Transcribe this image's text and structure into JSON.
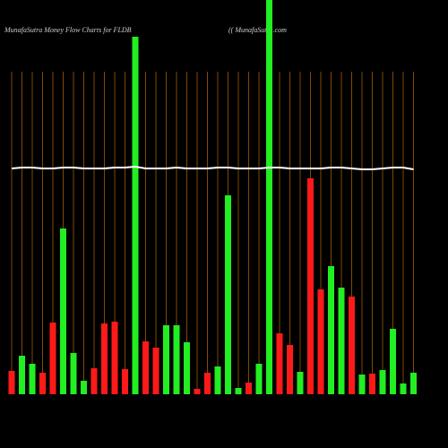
{
  "chart_data": {
    "type": "bar",
    "title": "MunafaSutra  Money Flow  Charts for FLDB",
    "subtitle": "(( MunafaSutra.com",
    "categories": [
      null,
      null,
      null,
      null,
      null,
      null,
      null,
      null,
      null,
      null,
      null,
      null,
      null,
      null,
      null,
      null,
      null,
      null,
      null,
      null,
      null,
      null,
      null,
      null,
      null,
      null,
      null,
      null,
      null,
      null,
      null,
      null,
      null,
      null,
      null,
      null,
      null,
      null,
      null,
      null
    ],
    "ylim": [
      0,
      440
    ],
    "series": [
      {
        "name": "money-flow",
        "colors": [
          "#ff1a1a",
          "#22ee22",
          "#22ee22",
          "#ff1a1a",
          "#ff1a1a",
          "#22ee22",
          "#22ee22",
          "#22ee22",
          "#ff1a1a",
          "#ff1a1a",
          "#ff1a1a",
          "#ff1a1a",
          "#22ee22",
          "#ff1a1a",
          "#ff1a1a",
          "#22ee22",
          "#22ee22",
          "#22ee22",
          "#ff1a1a",
          "#ff1a1a",
          "#22ee22",
          "#22ee22",
          "#22ee22",
          "#ff1a1a",
          "#22ee22",
          "#22ee22",
          "#ff1a1a",
          "#ff1a1a",
          "#22ee22",
          "#ff1a1a",
          "#ff1a1a",
          "#22ee22",
          "#22ee22",
          "#ff1a1a",
          "#22ee22",
          "#ff1a1a",
          "#22ee22",
          "#22ee22",
          "#22ee22",
          "#22ee22"
        ],
        "values": [
          26,
          43,
          34,
          24,
          80,
          185,
          46,
          15,
          29,
          79,
          81,
          28,
          399,
          59,
          52,
          77,
          77,
          58,
          6,
          24,
          31,
          222,
          7,
          13,
          34,
          440,
          68,
          55,
          25,
          241,
          117,
          143,
          119,
          109,
          22,
          23,
          27,
          73,
          12,
          24
        ]
      },
      {
        "name": "trend",
        "color": "#ffffff",
        "values": [
          252,
          253,
          253,
          252,
          252,
          253,
          253,
          252,
          252,
          252,
          253,
          253,
          254,
          252,
          252,
          252,
          253,
          252,
          252,
          252,
          253,
          253,
          252,
          252,
          252,
          253,
          253,
          252,
          252,
          252,
          252,
          253,
          253,
          252,
          251,
          251,
          252,
          253,
          253,
          251
        ]
      }
    ]
  }
}
